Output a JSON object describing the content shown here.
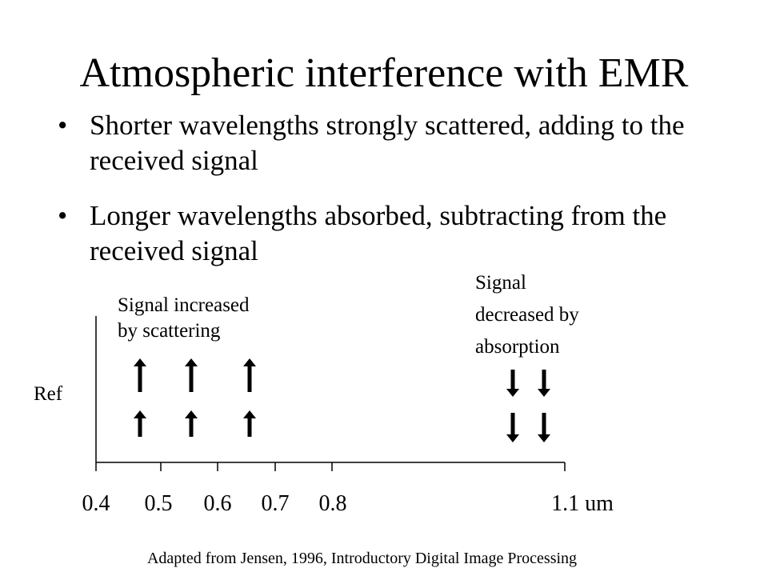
{
  "slide": {
    "title": "Atmospheric interference with EMR",
    "bullets": [
      {
        "text": "Shorter wavelengths strongly scattered, adding to the received signal"
      },
      {
        "text": "Longer wavelengths absorbed, subtracting from the received signal"
      }
    ],
    "bullet_glyph": "•"
  },
  "diagram": {
    "y_label": "Ref",
    "scatter_label": [
      "Signal increased",
      "by scattering"
    ],
    "absorption_label": [
      "Signal",
      "decreased by",
      "absorption"
    ],
    "x_ticks": [
      "0.4",
      "0.5",
      "0.6",
      "0.7",
      "0.8",
      "1.1 um"
    ],
    "up_arrow_rows": 2,
    "up_arrow_columns": 3,
    "down_arrow_rows": 2,
    "down_arrow_columns": 2,
    "up_arrow_icon": "arrow-up-icon",
    "down_arrow_icon": "arrow-down-icon"
  },
  "citation": "Adapted from Jensen, 1996, Introductory Digital Image Processing"
}
